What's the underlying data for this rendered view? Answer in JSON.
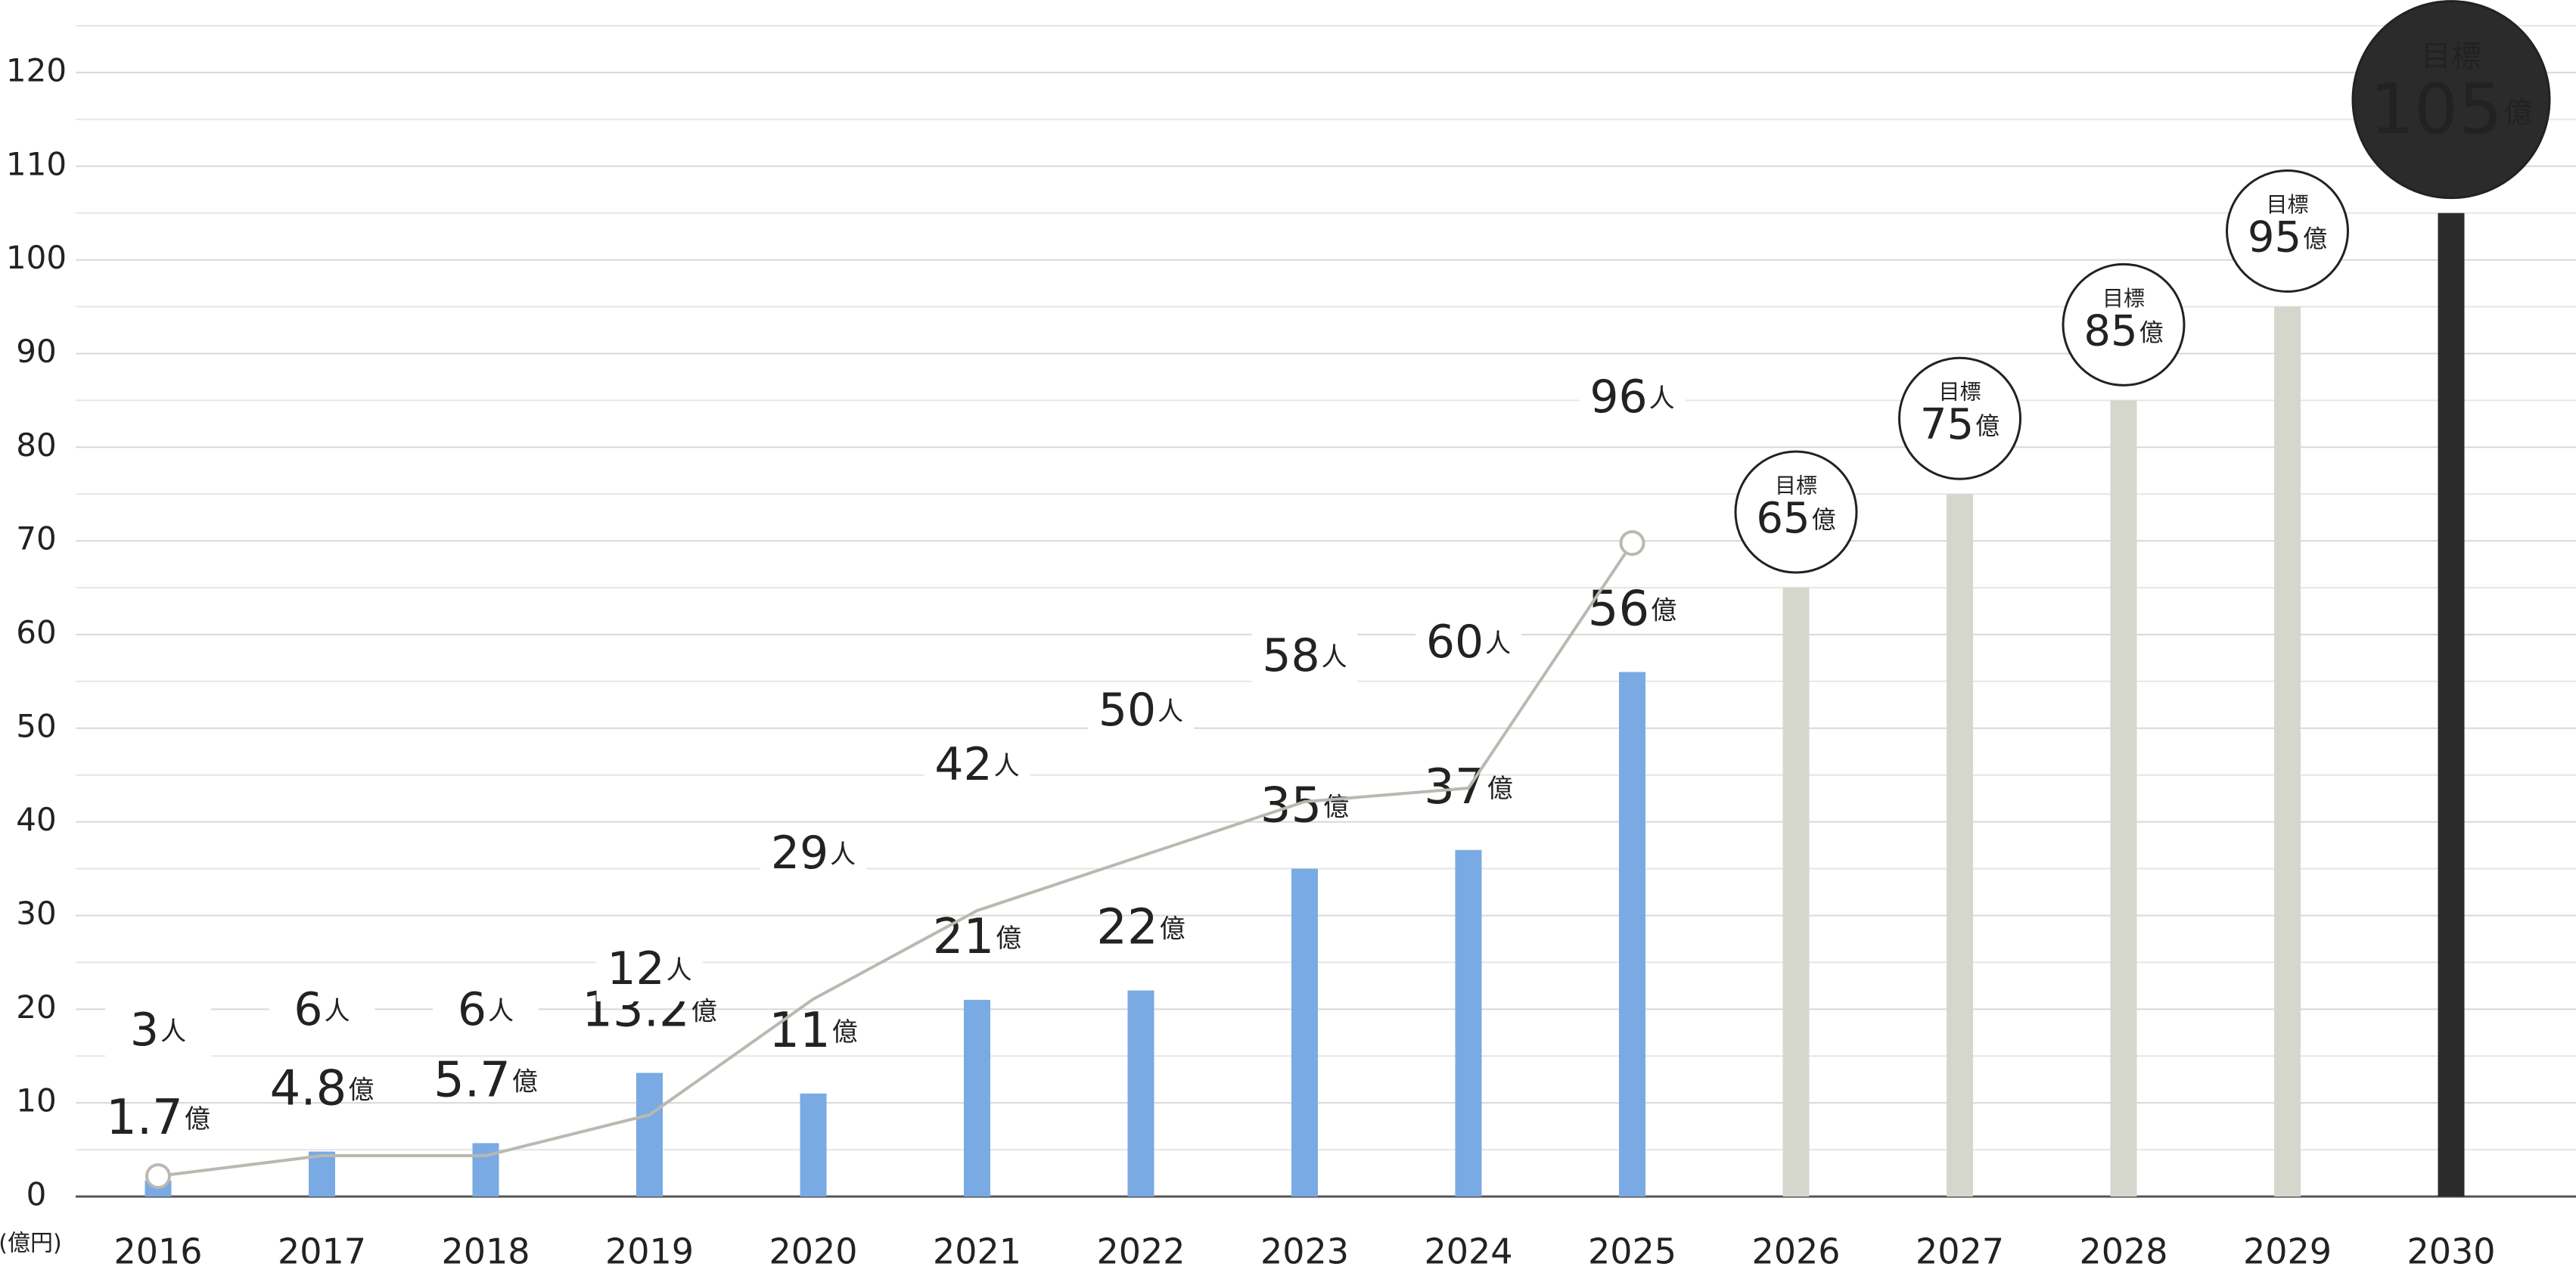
{
  "chart_data": {
    "type": "bar_line",
    "y_unit_label": "(億円)",
    "target_label": "目標",
    "categories": [
      "2016",
      "2017",
      "2018",
      "2019",
      "2020",
      "2021",
      "2022",
      "2023",
      "2024",
      "2025",
      "2026",
      "2027",
      "2028",
      "2029",
      "2030"
    ],
    "series": [
      {
        "type": "bar",
        "values": [
          1.7,
          4.8,
          5.7,
          13.2,
          11,
          21,
          22,
          35,
          37,
          56,
          65,
          75,
          85,
          95,
          105
        ],
        "value_labels": [
          "1.7億",
          "4.8億",
          "5.7億",
          "13.2億",
          "11億",
          "21億",
          "22億",
          "35億",
          "37億",
          "56億",
          "65億",
          "75億",
          "85億",
          "95億",
          "105億"
        ],
        "colors": [
          "#7aaae3",
          "#7aaae3",
          "#7aaae3",
          "#7aaae3",
          "#7aaae3",
          "#7aaae3",
          "#7aaae3",
          "#7aaae3",
          "#7aaae3",
          "#7aaae3",
          "#d6d7cc",
          "#d6d7cc",
          "#d6d7cc",
          "#d6d7cc",
          "#2b2b2b"
        ],
        "targets": [
          false,
          false,
          false,
          false,
          false,
          false,
          false,
          false,
          false,
          false,
          true,
          true,
          true,
          true,
          true
        ]
      },
      {
        "type": "line",
        "axis": "y2",
        "color": "#b9b9b1",
        "values": [
          3,
          6,
          6,
          12,
          29,
          42,
          50,
          58,
          60,
          96,
          null,
          null,
          null,
          null,
          null
        ],
        "value_labels": [
          "3人",
          "6人",
          "6人",
          "12人",
          "29人",
          "42人",
          "50人",
          "58人",
          "60人",
          "96人",
          null,
          null,
          null,
          null,
          null
        ]
      }
    ],
    "ylim": [
      0,
      125
    ],
    "yticks": [
      0,
      10,
      20,
      30,
      40,
      50,
      60,
      70,
      80,
      90,
      100,
      110,
      120
    ],
    "minor_yticks": [
      5,
      15,
      25,
      35,
      45,
      55,
      65,
      75,
      85,
      95,
      105,
      115,
      125
    ],
    "y2lim": [
      0,
      172
    ],
    "grid": true
  }
}
